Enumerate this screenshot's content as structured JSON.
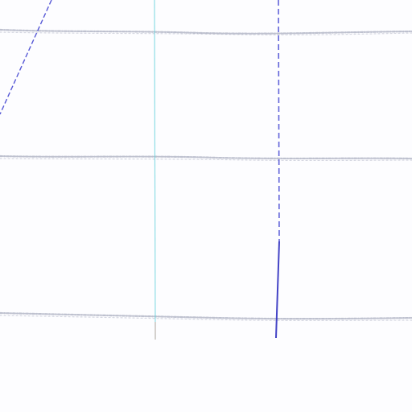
{
  "colors": {
    "paper": "#fdfdff",
    "horizontal_rule": "#8a90a8",
    "cyan_margin_line": "#69d2dc",
    "blue_ink": "#3a3ccf"
  }
}
